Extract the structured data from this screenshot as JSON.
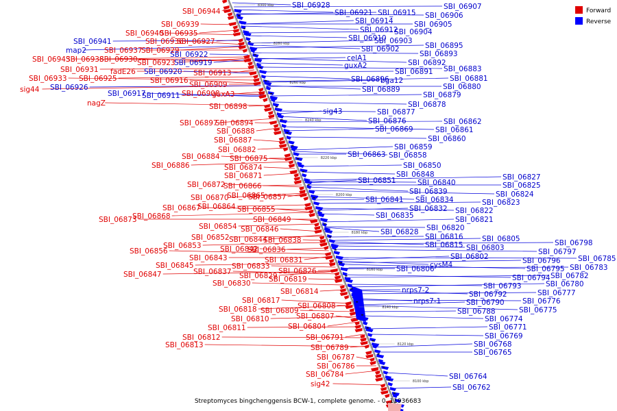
{
  "caption": "Streptomyces bingchenggensis BCW-1, complete genome. - 0..11936683",
  "legend": [
    {
      "label": "Forward",
      "color": "#e00000"
    },
    {
      "label": "Reverse",
      "color": "#0000ff"
    }
  ],
  "colors": {
    "forward": "#e00000",
    "reverse": "#0000ff",
    "backbone": "#888888"
  },
  "ruler_ticks": [
    "8300 kbp",
    "8280 kbp",
    "8260 kbp",
    "8240 kbp",
    "8220 kbp",
    "8200 kbp",
    "8180 kbp",
    "8160 kbp",
    "8140 kbp",
    "8120 kbp",
    "8100 kbp"
  ],
  "forward_labels": [
    "SBI_06944",
    "SBI_06939",
    "SBI_06935",
    "SBI_06940",
    "SBI_06927",
    "SBI_06936",
    "SBI_06937",
    "SBI_06929",
    "SBI_06943",
    "SBI_06938",
    "SBI_06930",
    "SBI_06931",
    "SBI_06923",
    "fadE26",
    "SBI_06913",
    "SBI_06933",
    "SBI_06925",
    "SBI_06916",
    "SBI_06909",
    "sig44",
    "SBI_06908",
    "guxA3",
    "nagZ",
    "SBI_06898",
    "SBI_06897",
    "SBI_06894",
    "SBI_06888",
    "SBI_06887",
    "SBI_06882",
    "SBI_06884",
    "SBI_06875",
    "SBI_06886",
    "SBI_06874",
    "SBI_06871",
    "SBI_06872",
    "SBI_06866",
    "SBI_06870",
    "SBI_06865",
    "SBI_06857",
    "SBI_06867",
    "SBI_06864",
    "SBI_06855",
    "SBI_06873",
    "SBI_06868",
    "SBI_06849",
    "SBI_06854",
    "SBI_06846",
    "SBI_06852",
    "SBI_06844",
    "SBI_06838",
    "SBI_06853",
    "SBI_06842",
    "SBI_06836",
    "SBI_06856",
    "SBI_06843",
    "SBI_06831",
    "SBI_06833",
    "SBI_06845",
    "SBI_06837",
    "SBI_06826",
    "SBI_06829",
    "SBI_06819",
    "SBI_06847",
    "SBI_06830",
    "SBI_06814",
    "SBI_06817",
    "SBI_06808",
    "SBI_06818",
    "SBI_06809",
    "SBI_06810",
    "SBI_06807",
    "SBI_06811",
    "SBI_06804",
    "SBI_06812",
    "SBI_06791",
    "SBI_06813",
    "SBI_06789",
    "SBI_06787",
    "SBI_06786",
    "SBI_06784",
    "sig42"
  ],
  "reverse_labels": [
    "SBI_06928",
    "SBI_06907",
    "SBI_06921",
    "SBI_06915",
    "SBI_06906",
    "SBI_06914",
    "SBI_06905",
    "SBI_06912",
    "SBI_06904",
    "SBI_06910",
    "SBI_06903",
    "SBI_06941",
    "map2",
    "SBI_06922",
    "SBI_06919",
    "SBI_06920",
    "SBI_06926",
    "SBI_06917",
    "SBI_06911",
    "SBI_06902",
    "celA1",
    "guxA2",
    "SBI_06895",
    "SBI_06893",
    "SBI_06892",
    "SBI_06891",
    "SBI_06896",
    "bga12",
    "SBI_06883",
    "SBI_06881",
    "SBI_06880",
    "SBI_06889",
    "SBI_06879",
    "SBI_06878",
    "sig43",
    "SBI_06877",
    "SBI_06876",
    "SBI_06862",
    "SBI_06861",
    "SBI_06869",
    "SBI_06860",
    "SBI_06859",
    "SBI_06863",
    "SBI_06858",
    "SBI_06850",
    "SBI_06848",
    "SBI_06851",
    "SBI_06840",
    "SBI_06839",
    "SBI_06841",
    "SBI_06834",
    "SBI_06832",
    "SBI_06835",
    "SBI_06827",
    "SBI_06825",
    "SBI_06824",
    "SBI_06823",
    "SBI_06822",
    "SBI_06821",
    "SBI_06820",
    "SBI_06828",
    "SBI_06816",
    "SBI_06815",
    "SBI_06805",
    "SBI_06803",
    "SBI_06802",
    "SBI_06806",
    "cysM4",
    "SBI_06798",
    "SBI_06797",
    "SBI_06796",
    "SBI_06785",
    "SBI_06795",
    "SBI_06783",
    "SBI_06794",
    "SBI_06782",
    "SBI_06793",
    "SBI_06780",
    "nrps7-2",
    "SBI_06792",
    "SBI_06777",
    "nrps7-1",
    "SBI_06790",
    "SBI_06776",
    "SBI_06775",
    "SBI_06788",
    "SBI_06774",
    "SBI_06771",
    "SBI_06769",
    "SBI_06768",
    "SBI_06765",
    "SBI_06764",
    "SBI_06762"
  ]
}
